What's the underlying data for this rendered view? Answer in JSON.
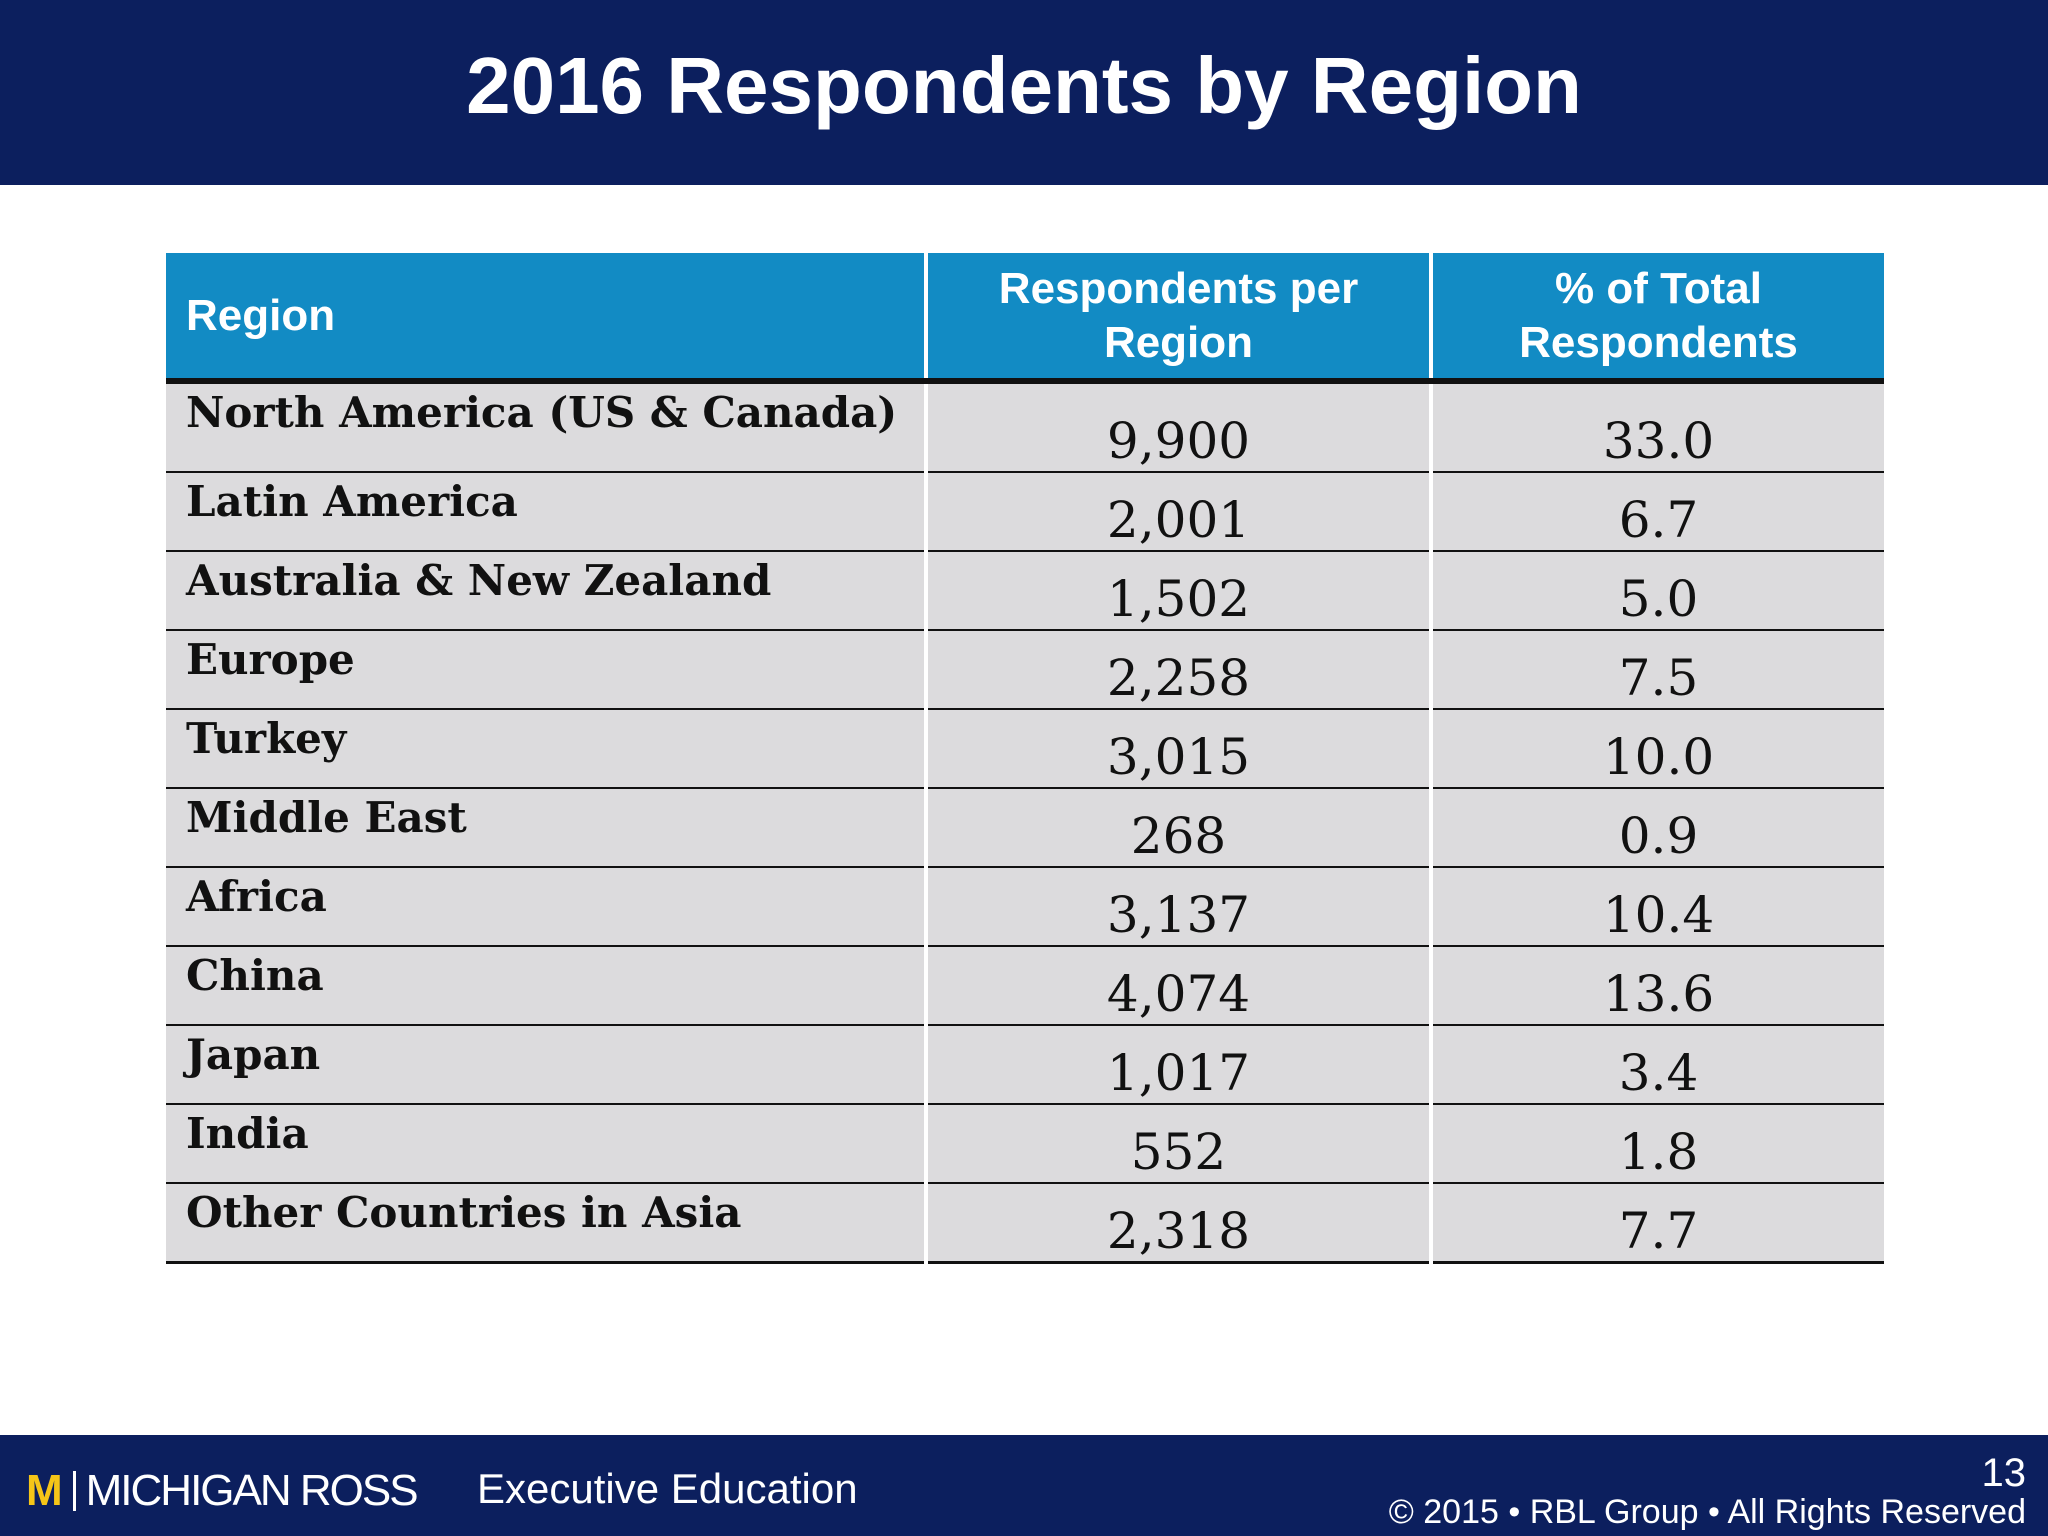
{
  "slide": {
    "title": "2016 Respondents by Region"
  },
  "table": {
    "headers": [
      "Region",
      "Respondents per Region",
      "% of Total Respondents"
    ],
    "rows": [
      {
        "region": "North America (US & Canada)",
        "respondents": "9,900",
        "percent": "33.0"
      },
      {
        "region": "Latin America",
        "respondents": "2,001",
        "percent": "6.7"
      },
      {
        "region": "Australia & New Zealand",
        "respondents": "1,502",
        "percent": "5.0"
      },
      {
        "region": "Europe",
        "respondents": "2,258",
        "percent": "7.5"
      },
      {
        "region": "Turkey",
        "respondents": "3,015",
        "percent": "10.0"
      },
      {
        "region": "Middle East",
        "respondents": "268",
        "percent": "0.9"
      },
      {
        "region": "Africa",
        "respondents": "3,137",
        "percent": "10.4"
      },
      {
        "region": "China",
        "respondents": "4,074",
        "percent": "13.6"
      },
      {
        "region": "Japan",
        "respondents": "1,017",
        "percent": "3.4"
      },
      {
        "region": "India",
        "respondents": "552",
        "percent": "1.8"
      },
      {
        "region": "Other Countries in Asia",
        "respondents": "2,318",
        "percent": "7.7"
      }
    ]
  },
  "footer": {
    "logo_mark": "M",
    "logo_text": "MICHIGAN ROSS",
    "program": "Executive Education",
    "page_number": "13",
    "copyright": "© 2015 • RBL Group • All Rights Reserved"
  },
  "colors": {
    "navy": "#0c1f5e",
    "header_blue": "#128bc4",
    "row_gray": "#dcdbdd",
    "maize": "#f5c518"
  }
}
